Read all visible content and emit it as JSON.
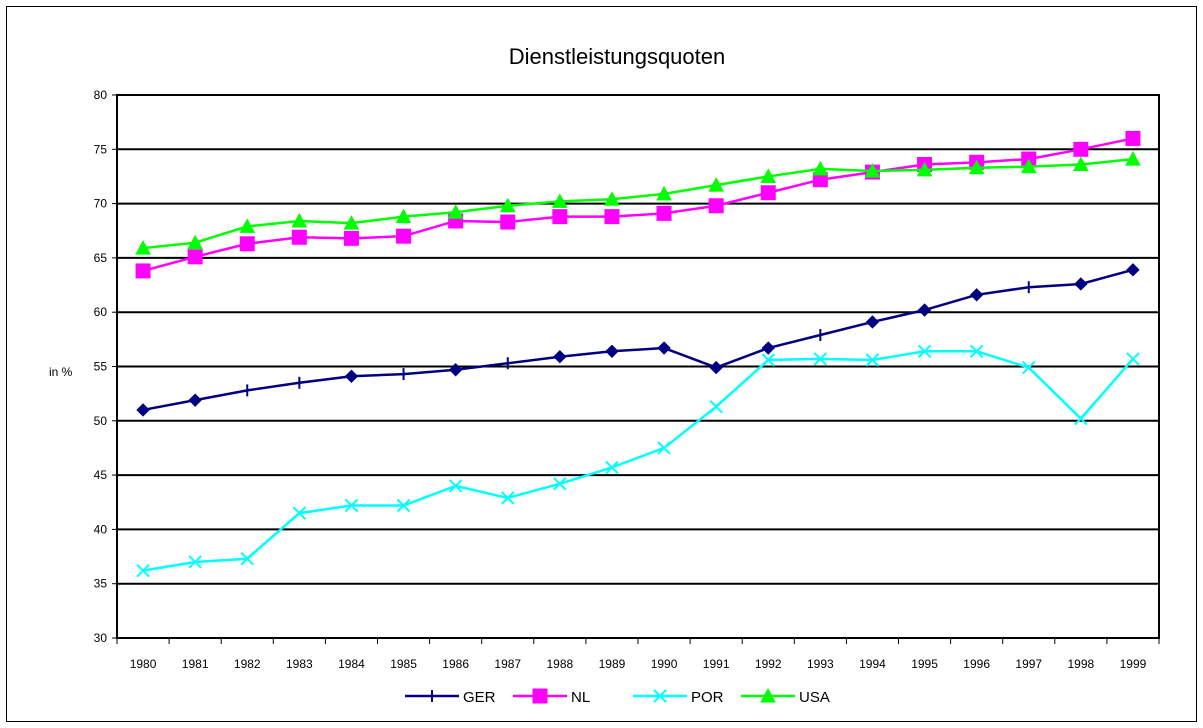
{
  "chart_data": {
    "type": "line",
    "title": "Dienstleistungsquoten",
    "ylabel": "in %",
    "xlabel": "",
    "ylim": [
      30,
      80
    ],
    "yticks": [
      "30",
      "35",
      "40",
      "45",
      "50",
      "55",
      "60",
      "65",
      "70",
      "75",
      "80"
    ],
    "categories": [
      "1980",
      "1981",
      "1982",
      "1983",
      "1984",
      "1985",
      "1986",
      "1987",
      "1988",
      "1989",
      "1990",
      "1991",
      "1992",
      "1993",
      "1994",
      "1995",
      "1996",
      "1997",
      "1998",
      "1999"
    ],
    "grid": "horizontal",
    "legend_position": "bottom",
    "series": [
      {
        "name": "GER",
        "color": "#000080",
        "marker": "diamond",
        "values": [
          51.0,
          51.9,
          52.8,
          53.5,
          54.1,
          54.3,
          54.7,
          55.3,
          55.9,
          56.4,
          56.7,
          54.9,
          56.7,
          57.9,
          59.1,
          60.2,
          61.6,
          62.3,
          62.6,
          63.9
        ]
      },
      {
        "name": "NL",
        "color": "#FF00FF",
        "marker": "square",
        "values": [
          63.8,
          65.1,
          66.3,
          66.9,
          66.8,
          67.0,
          68.4,
          68.3,
          68.8,
          68.8,
          69.1,
          69.8,
          71.0,
          72.2,
          72.9,
          73.6,
          73.8,
          74.1,
          75.0,
          76.0
        ]
      },
      {
        "name": "POR",
        "color": "#00FFFF",
        "marker": "x",
        "values": [
          36.2,
          37.0,
          37.3,
          41.5,
          42.2,
          42.2,
          44.0,
          42.9,
          44.2,
          45.7,
          47.5,
          51.3,
          55.6,
          55.7,
          55.6,
          56.4,
          56.4,
          54.9,
          50.2,
          55.7
        ]
      },
      {
        "name": "USA",
        "color": "#00FF00",
        "marker": "triangle",
        "values": [
          65.9,
          66.4,
          67.9,
          68.4,
          68.2,
          68.8,
          69.2,
          69.8,
          70.2,
          70.4,
          70.9,
          71.7,
          72.5,
          73.2,
          73.0,
          73.1,
          73.3,
          73.4,
          73.6,
          74.1
        ]
      }
    ]
  }
}
